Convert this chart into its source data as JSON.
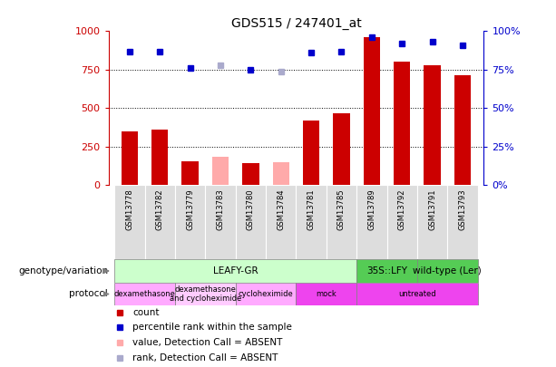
{
  "title": "GDS515 / 247401_at",
  "samples": [
    "GSM13778",
    "GSM13782",
    "GSM13779",
    "GSM13783",
    "GSM13780",
    "GSM13784",
    "GSM13781",
    "GSM13785",
    "GSM13789",
    "GSM13792",
    "GSM13791",
    "GSM13793"
  ],
  "count_values": [
    350,
    360,
    155,
    null,
    145,
    null,
    420,
    465,
    960,
    800,
    780,
    715
  ],
  "count_absent": [
    null,
    null,
    null,
    185,
    null,
    150,
    null,
    null,
    null,
    null,
    null,
    null
  ],
  "rank_values": [
    87,
    87,
    76,
    null,
    75,
    null,
    86,
    87,
    96,
    92,
    93,
    91
  ],
  "rank_absent": [
    null,
    null,
    null,
    78,
    null,
    74,
    null,
    null,
    null,
    null,
    null,
    null
  ],
  "ylim_left": [
    0,
    1000
  ],
  "ylim_right": [
    0,
    100
  ],
  "yticks_left": [
    0,
    250,
    500,
    750,
    1000
  ],
  "yticks_right": [
    0,
    25,
    50,
    75,
    100
  ],
  "bar_color_present": "#cc0000",
  "bar_color_absent": "#ffaaaa",
  "dot_color_present": "#0000cc",
  "dot_color_absent": "#aaaacc",
  "genotype_row": [
    {
      "label": "LEAFY-GR",
      "start": 0,
      "end": 8,
      "color": "#ccffcc"
    },
    {
      "label": "35S::LFY",
      "start": 8,
      "end": 10,
      "color": "#55cc55"
    },
    {
      "label": "wild-type (Ler)",
      "start": 10,
      "end": 12,
      "color": "#55cc55"
    }
  ],
  "protocol_row": [
    {
      "label": "dexamethasone",
      "start": 0,
      "end": 2,
      "color": "#ffaaff"
    },
    {
      "label": "dexamethasone\nand cycloheximide",
      "start": 2,
      "end": 4,
      "color": "#ffccff"
    },
    {
      "label": "cycloheximide",
      "start": 4,
      "end": 6,
      "color": "#ffaaff"
    },
    {
      "label": "mock",
      "start": 6,
      "end": 8,
      "color": "#ee44ee"
    },
    {
      "label": "untreated",
      "start": 8,
      "end": 12,
      "color": "#ee44ee"
    }
  ],
  "legend_items": [
    {
      "label": "count",
      "color": "#cc0000"
    },
    {
      "label": "percentile rank within the sample",
      "color": "#0000cc"
    },
    {
      "label": "value, Detection Call = ABSENT",
      "color": "#ffaaaa"
    },
    {
      "label": "rank, Detection Call = ABSENT",
      "color": "#aaaacc"
    }
  ],
  "left_label_color": "#cc0000",
  "right_label_color": "#0000cc",
  "row_label_geno": "genotype/variation",
  "row_label_proto": "protocol",
  "bar_width": 0.55,
  "xtick_cell_color": "#dddddd",
  "fig_bg": "#ffffff"
}
